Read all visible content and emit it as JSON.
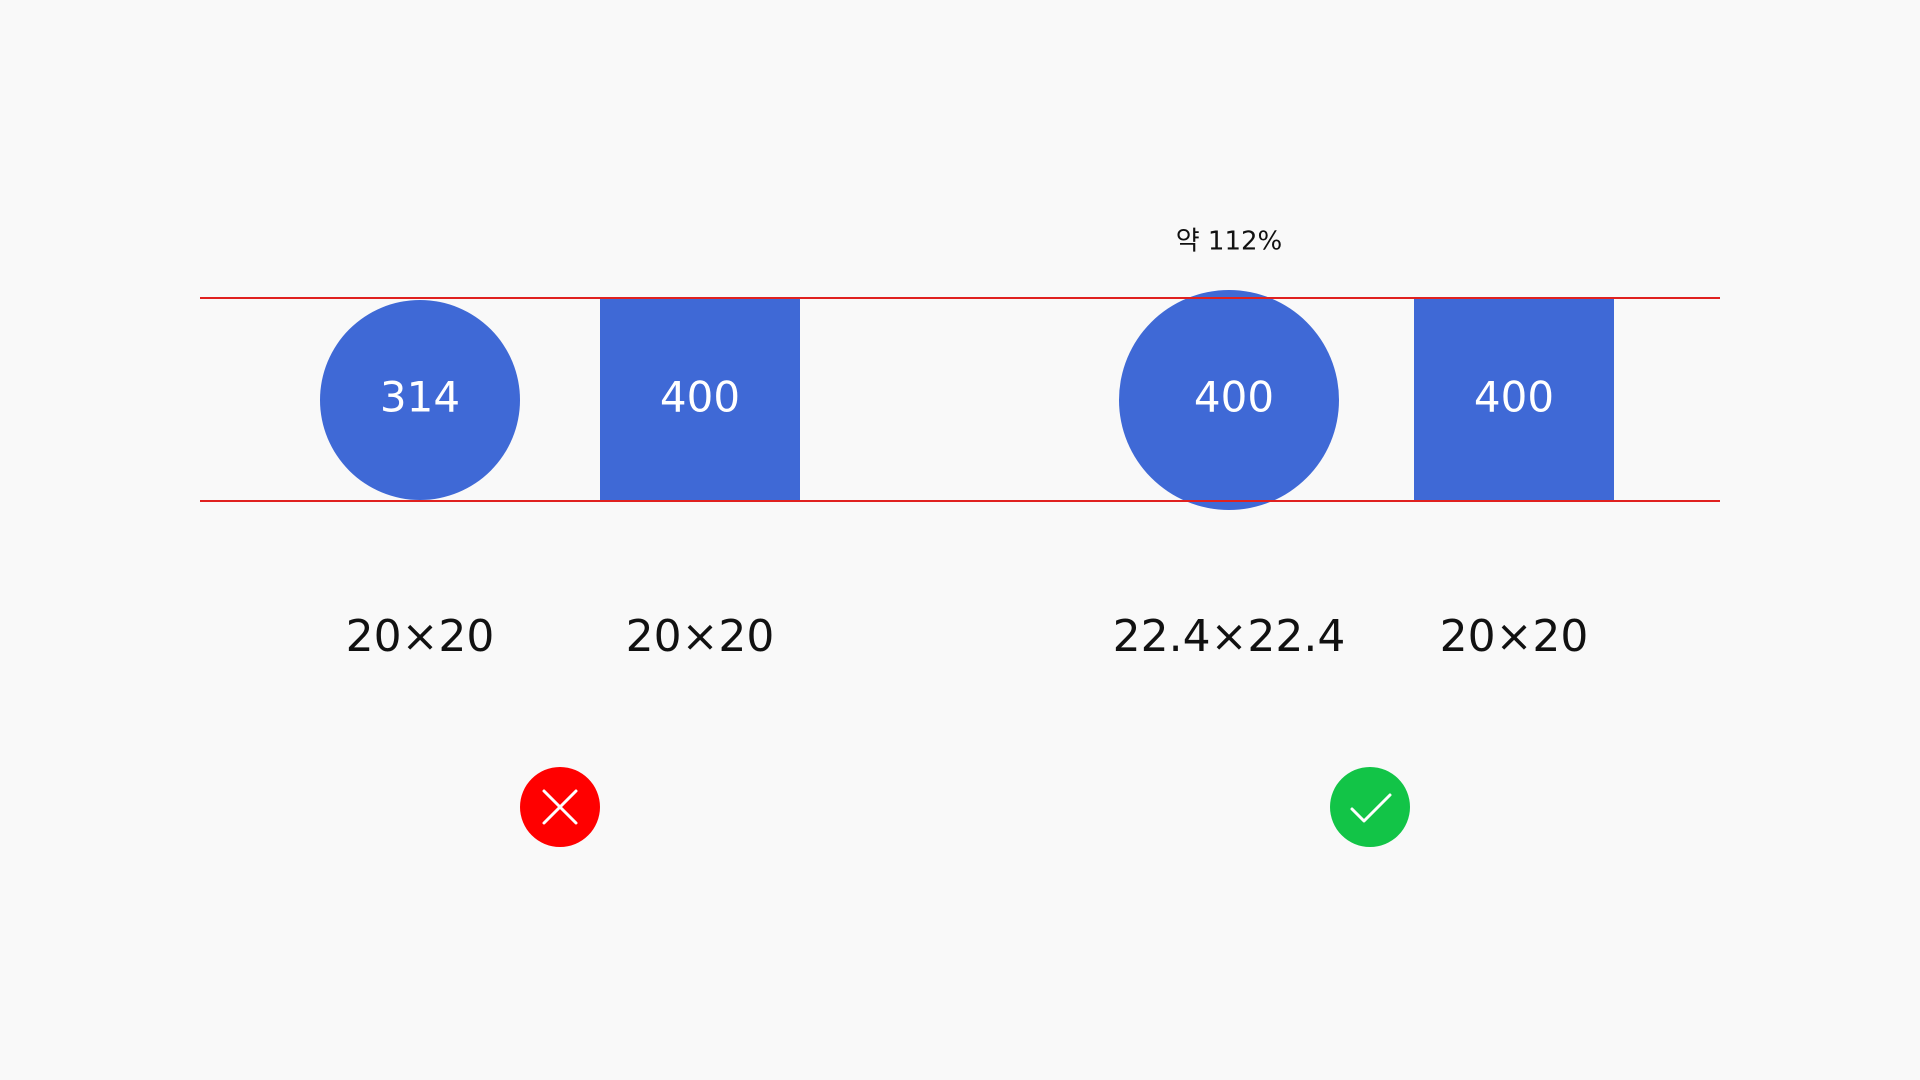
{
  "annotation": "약 112%",
  "groups": [
    {
      "items": [
        {
          "shape_label": "314",
          "size_label": "20×20"
        },
        {
          "shape_label": "400",
          "size_label": "20×20"
        }
      ]
    },
    {
      "items": [
        {
          "shape_label": "400",
          "size_label": "22.4×22.4"
        },
        {
          "shape_label": "400",
          "size_label": "20×20"
        }
      ]
    }
  ]
}
